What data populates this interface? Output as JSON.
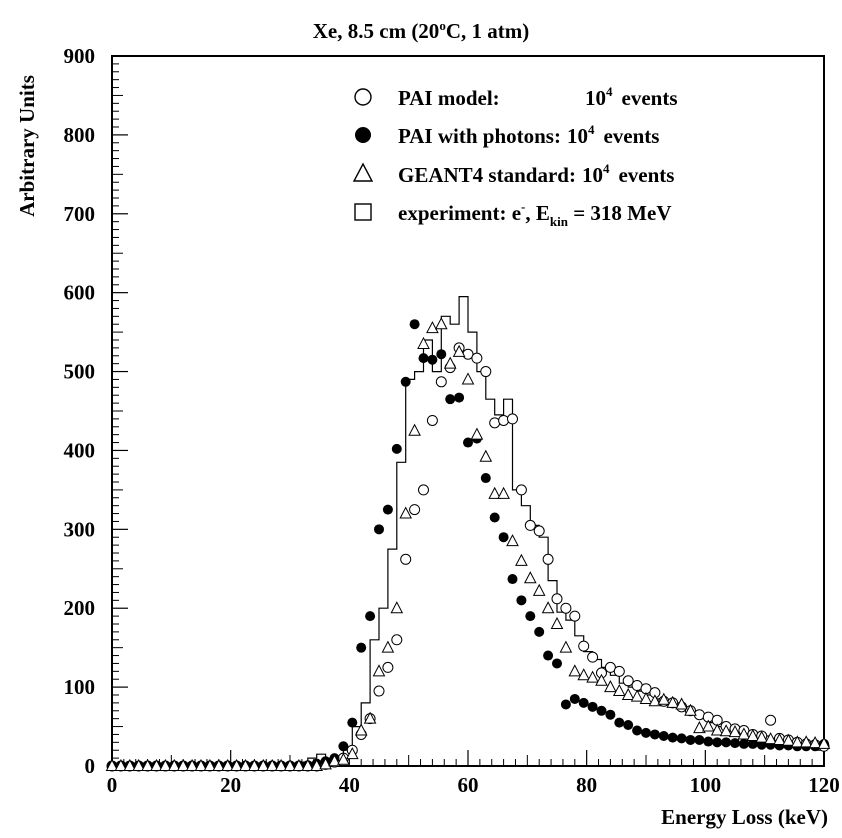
{
  "chart_data": {
    "type": "scatter",
    "title": "Xe, 8.5 cm (20°C, 1 atm)",
    "title_parts": {
      "prefix": "Xe, 8.5 cm (20",
      "sup": "o",
      "suffix": "C, 1 atm)"
    },
    "xlabel": "Energy Loss (keV)",
    "ylabel": "Arbitrary Units",
    "xlim": [
      0,
      120
    ],
    "ylim": [
      0,
      900
    ],
    "xticks": [
      0,
      20,
      40,
      60,
      80,
      100,
      120
    ],
    "yticks": [
      0,
      100,
      200,
      300,
      400,
      500,
      600,
      700,
      800,
      900
    ],
    "grid": false,
    "legend_position": "top-right",
    "legend": [
      {
        "marker": "open-circle",
        "label": "PAI model:",
        "count_base": "10",
        "count_exp": "4",
        "unit": "events"
      },
      {
        "marker": "filled-circle",
        "label": "PAI with photons:",
        "count_base": "10",
        "count_exp": "4",
        "unit": "events"
      },
      {
        "marker": "open-triangle",
        "label": "GEANT4 standard:",
        "count_base": "10",
        "count_exp": "4",
        "unit": "events"
      },
      {
        "marker": "open-square",
        "label": "experiment: e",
        "sup": "-",
        "mid": ", E",
        "sub": "kin",
        "tail": " = 318 MeV"
      }
    ],
    "series": [
      {
        "name": "PAI model: 10^4 events",
        "marker": "open-circle",
        "x": [
          0,
          1.5,
          3,
          4.5,
          6,
          7.5,
          9,
          10.5,
          12,
          13.5,
          15,
          16.5,
          18,
          19.5,
          21,
          22.5,
          24,
          25.5,
          27,
          28.5,
          30,
          31.5,
          33,
          34.5,
          36,
          37.5,
          39,
          40.5,
          42,
          43.5,
          45,
          46.5,
          48,
          49.5,
          51,
          52.5,
          54,
          55.5,
          57,
          58.5,
          60,
          61.5,
          63,
          64.5,
          66,
          67.5,
          69,
          70.5,
          72,
          73.5,
          75,
          76.5,
          78,
          79.5,
          81,
          82.5,
          84,
          85.5,
          87,
          88.5,
          90,
          91.5,
          93,
          94.5,
          96,
          97.5,
          99,
          100.5,
          102,
          103.5,
          105,
          106.5,
          108,
          109.5,
          111,
          112.5,
          114,
          115.5,
          117,
          118.5,
          120
        ],
        "y": [
          0,
          0,
          0,
          0,
          0,
          0,
          0,
          0,
          0,
          0,
          0,
          0,
          0,
          0,
          0,
          0,
          0,
          0,
          0,
          0,
          0,
          0,
          0,
          0,
          2,
          5,
          10,
          20,
          40,
          60,
          95,
          125,
          160,
          262,
          325,
          350,
          438,
          487,
          505,
          530,
          522,
          517,
          500,
          435,
          438,
          440,
          350,
          305,
          298,
          262,
          212,
          200,
          190,
          152,
          138,
          118,
          125,
          120,
          108,
          102,
          98,
          93,
          82,
          80,
          75,
          70,
          65,
          62,
          58,
          50,
          47,
          45,
          40,
          38,
          58,
          35,
          33,
          30,
          28,
          27,
          25
        ]
      },
      {
        "name": "PAI with photons: 10^4 events",
        "marker": "filled-circle",
        "x": [
          0,
          1.5,
          3,
          4.5,
          6,
          7.5,
          9,
          10.5,
          12,
          13.5,
          15,
          16.5,
          18,
          19.5,
          21,
          22.5,
          24,
          25.5,
          27,
          28.5,
          30,
          31.5,
          33,
          34.5,
          36,
          37.5,
          39,
          40.5,
          42,
          43.5,
          45,
          46.5,
          48,
          49.5,
          51,
          52.5,
          54,
          55.5,
          57,
          58.5,
          60,
          61.5,
          63,
          64.5,
          66,
          67.5,
          69,
          70.5,
          72,
          73.5,
          75,
          76.5,
          78,
          79.5,
          81,
          82.5,
          84,
          85.5,
          87,
          88.5,
          90,
          91.5,
          93,
          94.5,
          96,
          97.5,
          99,
          100.5,
          102,
          103.5,
          105,
          106.5,
          108,
          109.5,
          111,
          112.5,
          114,
          115.5,
          117,
          118.5,
          120
        ],
        "y": [
          0,
          0,
          0,
          0,
          0,
          0,
          0,
          0,
          0,
          0,
          0,
          0,
          0,
          0,
          0,
          0,
          0,
          0,
          0,
          0,
          0,
          0,
          1,
          3,
          6,
          10,
          25,
          55,
          150,
          190,
          300,
          325,
          402,
          487,
          560,
          517,
          515,
          522,
          465,
          467,
          410,
          415,
          365,
          315,
          290,
          237,
          210,
          190,
          170,
          140,
          130,
          78,
          85,
          80,
          75,
          70,
          65,
          55,
          52,
          45,
          42,
          40,
          38,
          36,
          35,
          33,
          33,
          31,
          30,
          30,
          29,
          28,
          28,
          27,
          27,
          26,
          26,
          25,
          25,
          25,
          28
        ]
      },
      {
        "name": "GEANT4 standard: 10^4 events",
        "marker": "open-triangle",
        "x": [
          0,
          1.5,
          3,
          4.5,
          6,
          7.5,
          9,
          10.5,
          12,
          13.5,
          15,
          16.5,
          18,
          19.5,
          21,
          22.5,
          24,
          25.5,
          27,
          28.5,
          30,
          31.5,
          33,
          34.5,
          36,
          37.5,
          39,
          40.5,
          42,
          43.5,
          45,
          46.5,
          48,
          49.5,
          51,
          52.5,
          54,
          55.5,
          57,
          58.5,
          60,
          61.5,
          63,
          64.5,
          66,
          67.5,
          69,
          70.5,
          72,
          73.5,
          75,
          76.5,
          78,
          79.5,
          81,
          82.5,
          84,
          85.5,
          87,
          88.5,
          90,
          91.5,
          93,
          94.5,
          96,
          97.5,
          99,
          100.5,
          102,
          103.5,
          105,
          106.5,
          108,
          109.5,
          111,
          112.5,
          114,
          115.5,
          117,
          118.5,
          120
        ],
        "y": [
          0,
          0,
          0,
          0,
          0,
          0,
          0,
          0,
          0,
          0,
          0,
          0,
          0,
          0,
          0,
          0,
          0,
          0,
          0,
          0,
          0,
          0,
          0,
          0,
          2,
          6,
          8,
          15,
          45,
          60,
          120,
          150,
          200,
          320,
          425,
          535,
          555,
          560,
          510,
          525,
          490,
          420,
          392,
          345,
          345,
          285,
          260,
          238,
          222,
          200,
          180,
          150,
          120,
          115,
          112,
          108,
          100,
          95,
          90,
          88,
          85,
          82,
          84,
          80,
          78,
          70,
          48,
          50,
          45,
          44,
          43,
          40,
          38,
          36,
          34,
          33,
          32,
          30,
          30,
          29,
          28
        ]
      },
      {
        "name": "experiment: e-, Ekin = 318 MeV",
        "marker": "histogram",
        "bin_edges": [
          0,
          1.5,
          3,
          4.5,
          6,
          7.5,
          9,
          10.5,
          12,
          13.5,
          15,
          16.5,
          18,
          19.5,
          21,
          22.5,
          24,
          25.5,
          27,
          28.5,
          30,
          31.5,
          33,
          34.5,
          36,
          37.5,
          39,
          40.5,
          42,
          43.5,
          45,
          46.5,
          48,
          49.5,
          51,
          52.5,
          54,
          55.5,
          57,
          58.5,
          60,
          61.5,
          63,
          64.5,
          66,
          67.5,
          69,
          70.5,
          72,
          73.5,
          75,
          76.5,
          78,
          79.5,
          81,
          82.5,
          84,
          85.5,
          87,
          88.5,
          90,
          91.5,
          93,
          94.5,
          96,
          97.5,
          99,
          100.5,
          102,
          103.5,
          105,
          106.5,
          108,
          109.5,
          111,
          112.5,
          114,
          115.5,
          117,
          118.5,
          120
        ],
        "counts": [
          0,
          0,
          0,
          0,
          0,
          0,
          0,
          0,
          0,
          0,
          0,
          0,
          0,
          0,
          0,
          0,
          0,
          0,
          0,
          0,
          0,
          5,
          10,
          15,
          10,
          5,
          20,
          50,
          80,
          160,
          200,
          275,
          385,
          490,
          500,
          540,
          500,
          570,
          560,
          595,
          550,
          500,
          465,
          445,
          465,
          350,
          330,
          305,
          290,
          235,
          195,
          185,
          165,
          145,
          135,
          125,
          115,
          105,
          100,
          95,
          90,
          85,
          80,
          75,
          70,
          65,
          60,
          55,
          50,
          48,
          45,
          42,
          40,
          38,
          35,
          33,
          30,
          28,
          25,
          20
        ]
      }
    ]
  }
}
